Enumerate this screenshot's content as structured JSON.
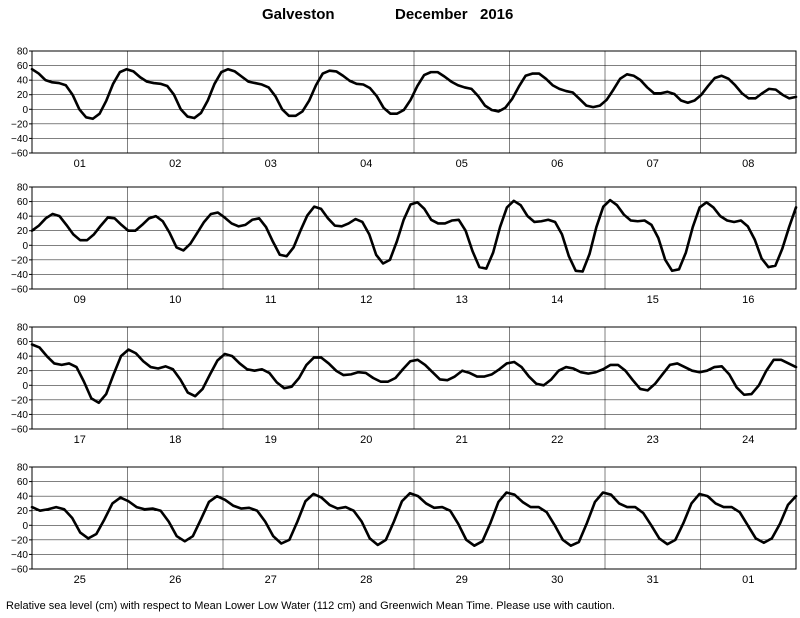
{
  "header": {
    "station": "Galveston",
    "month": "December",
    "year": "2016"
  },
  "caption": "Relative sea level (cm) with respect to Mean Lower Low Water (112 cm) and Greenwich Mean Time. Please use with caution.",
  "chart_data": {
    "type": "line",
    "ylim": [
      -60,
      80
    ],
    "yticks": [
      -60,
      -40,
      -20,
      0,
      20,
      40,
      60,
      80
    ],
    "grid": true,
    "line_color": "#000000",
    "panels": [
      {
        "days": [
          "01",
          "02",
          "03",
          "04",
          "05",
          "06",
          "07",
          "08"
        ],
        "values": [
          55,
          49,
          40,
          37,
          36,
          33,
          20,
          0,
          -11,
          -13,
          -6,
          12,
          35,
          51,
          55,
          52,
          44,
          38,
          36,
          35,
          32,
          20,
          0,
          -10,
          -12,
          -5,
          12,
          35,
          51,
          55,
          52,
          45,
          38,
          36,
          34,
          30,
          18,
          0,
          -9,
          -9,
          -3,
          12,
          33,
          49,
          53,
          52,
          46,
          39,
          35,
          34,
          29,
          18,
          2,
          -6,
          -6,
          -1,
          13,
          32,
          47,
          51,
          51,
          45,
          38,
          33,
          30,
          28,
          18,
          5,
          -1,
          -3,
          2,
          14,
          31,
          46,
          49,
          49,
          42,
          33,
          28,
          25,
          23,
          14,
          5,
          3,
          5,
          13,
          27,
          42,
          48,
          46,
          40,
          30,
          22,
          22,
          24,
          21,
          12,
          9,
          12,
          20,
          32,
          43,
          46,
          42,
          33,
          22,
          15,
          15,
          22,
          28,
          27,
          20,
          15,
          17
        ]
      },
      {
        "days": [
          "09",
          "10",
          "11",
          "12",
          "13",
          "14",
          "15",
          "16"
        ],
        "values": [
          20,
          27,
          37,
          43,
          40,
          28,
          15,
          7,
          7,
          15,
          27,
          38,
          37,
          28,
          20,
          20,
          28,
          37,
          40,
          33,
          17,
          -3,
          -7,
          2,
          17,
          32,
          43,
          45,
          38,
          30,
          26,
          28,
          35,
          37,
          25,
          5,
          -13,
          -15,
          -3,
          20,
          41,
          53,
          50,
          37,
          27,
          26,
          30,
          36,
          32,
          15,
          -13,
          -25,
          -20,
          5,
          35,
          56,
          59,
          50,
          35,
          30,
          30,
          34,
          35,
          20,
          -8,
          -30,
          -32,
          -10,
          25,
          52,
          61,
          55,
          40,
          32,
          33,
          35,
          32,
          15,
          -15,
          -35,
          -36,
          -12,
          25,
          53,
          62,
          55,
          42,
          34,
          33,
          34,
          28,
          10,
          -20,
          -35,
          -33,
          -10,
          25,
          52,
          59,
          52,
          40,
          34,
          32,
          34,
          26,
          8,
          -18,
          -30,
          -28,
          -5,
          25,
          52
        ]
      },
      {
        "days": [
          "17",
          "18",
          "19",
          "20",
          "21",
          "22",
          "23",
          "24"
        ],
        "values": [
          56,
          52,
          40,
          30,
          28,
          30,
          25,
          5,
          -18,
          -24,
          -12,
          15,
          40,
          49,
          44,
          33,
          25,
          23,
          26,
          22,
          8,
          -10,
          -15,
          -5,
          15,
          34,
          43,
          40,
          30,
          22,
          20,
          22,
          17,
          4,
          -4,
          -2,
          10,
          28,
          38,
          38,
          30,
          20,
          14,
          15,
          18,
          17,
          10,
          5,
          5,
          10,
          22,
          33,
          35,
          28,
          18,
          8,
          7,
          12,
          20,
          17,
          12,
          12,
          15,
          22,
          30,
          32,
          25,
          12,
          2,
          0,
          8,
          20,
          25,
          23,
          18,
          16,
          18,
          22,
          28,
          28,
          20,
          7,
          -5,
          -7,
          2,
          15,
          28,
          30,
          25,
          20,
          18,
          20,
          25,
          26,
          15,
          -3,
          -13,
          -12,
          0,
          20,
          35,
          35,
          30,
          25
        ]
      },
      {
        "days": [
          "25",
          "26",
          "27",
          "28",
          "29",
          "30",
          "31",
          "01"
        ],
        "values": [
          25,
          20,
          22,
          25,
          22,
          10,
          -10,
          -18,
          -12,
          8,
          30,
          38,
          33,
          25,
          22,
          23,
          20,
          5,
          -15,
          -22,
          -15,
          8,
          32,
          40,
          35,
          27,
          23,
          24,
          20,
          5,
          -15,
          -25,
          -20,
          5,
          33,
          43,
          38,
          28,
          23,
          25,
          20,
          5,
          -18,
          -27,
          -20,
          5,
          33,
          44,
          40,
          30,
          24,
          25,
          20,
          2,
          -20,
          -28,
          -22,
          3,
          32,
          45,
          42,
          32,
          25,
          25,
          18,
          0,
          -20,
          -28,
          -23,
          3,
          32,
          45,
          42,
          30,
          25,
          25,
          17,
          0,
          -18,
          -26,
          -20,
          3,
          30,
          43,
          40,
          30,
          25,
          25,
          18,
          0,
          -18,
          -24,
          -18,
          2,
          28,
          40
        ]
      }
    ]
  }
}
